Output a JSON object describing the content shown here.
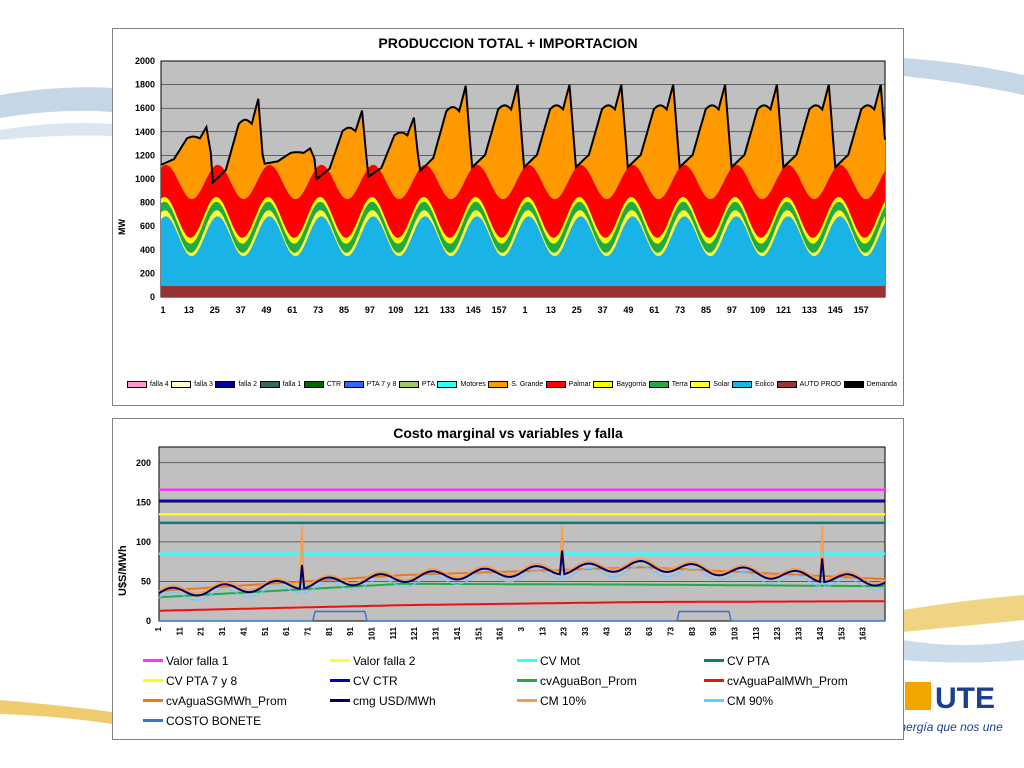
{
  "branding": {
    "tagline": "La energía que nos une",
    "logo_text": "UTE"
  },
  "chart_data": [
    {
      "type": "area",
      "title": "PRODUCCION TOTAL + IMPORTACION",
      "ylabel": "MW",
      "ylim": [
        0,
        2000
      ],
      "yticks": [
        0,
        200,
        400,
        600,
        800,
        1000,
        1200,
        1400,
        1600,
        1800,
        2000
      ],
      "xticks": [
        "1",
        "13",
        "25",
        "37",
        "49",
        "61",
        "73",
        "85",
        "97",
        "109",
        "121",
        "133",
        "145",
        "157",
        "1",
        "13",
        "25",
        "37",
        "49",
        "61",
        "73",
        "85",
        "97",
        "109",
        "121",
        "133",
        "145",
        "157"
      ],
      "x_count": 336,
      "grid": true,
      "legend_position": "bottom",
      "layers": [
        {
          "name": "AUTO PROD",
          "color": "#993333",
          "base": 95,
          "amp": 0,
          "min": 95,
          "max": 95
        },
        {
          "name": "Eolico",
          "color": "#1ab3e8",
          "base": 420,
          "amp": 170,
          "min": 200,
          "max": 650
        },
        {
          "name": "Solar",
          "color": "#ffff33",
          "base": 40,
          "amp": 20,
          "min": 20,
          "max": 60
        },
        {
          "name": "Terra",
          "color": "#22aa44",
          "base": 75,
          "amp": 10,
          "min": 60,
          "max": 90
        },
        {
          "name": "Baygorria",
          "color": "#ffff00",
          "base": 45,
          "amp": 5,
          "min": 40,
          "max": 50
        },
        {
          "name": "Palmar",
          "color": "#ff0000",
          "base": 300,
          "amp": 40,
          "min": 250,
          "max": 350
        },
        {
          "name": "S. Grande",
          "color": "#ff9900",
          "base": 500,
          "amp": 300,
          "min": 150,
          "max": 850
        }
      ],
      "series": [
        {
          "name": "falla 4",
          "color": "#ff99cc",
          "values": []
        },
        {
          "name": "falla 3",
          "color": "#ffffcc",
          "values": []
        },
        {
          "name": "falla 2",
          "color": "#000099",
          "values": []
        },
        {
          "name": "falla 1",
          "color": "#336666",
          "values": []
        },
        {
          "name": "CTR",
          "color": "#006600",
          "values": []
        },
        {
          "name": "PTA 7 y 8",
          "color": "#3366ff",
          "values": []
        },
        {
          "name": "PTA",
          "color": "#99cc66",
          "values": []
        },
        {
          "name": "Motores",
          "color": "#33ffff",
          "values": []
        },
        {
          "name": "S. Grande",
          "color": "#ff9900",
          "values": []
        },
        {
          "name": "Palmar",
          "color": "#ff0000",
          "values": []
        },
        {
          "name": "Baygorria",
          "color": "#ffff00",
          "values": []
        },
        {
          "name": "Terra",
          "color": "#22aa44",
          "values": []
        },
        {
          "name": "Solar",
          "color": "#ffff33",
          "values": []
        },
        {
          "name": "Eolico",
          "color": "#1ab3e8",
          "values": []
        },
        {
          "name": "AUTO PROD",
          "color": "#993333",
          "values": []
        },
        {
          "name": "Demanda",
          "color": "#000000",
          "values": []
        }
      ],
      "demanda_daily_peaks": [
        1440,
        1680,
        1260,
        1580,
        1520,
        1790,
        1800,
        1800,
        1800,
        1800,
        1800,
        1800,
        1800,
        1800
      ],
      "demanda_daily_troughs": [
        1120,
        970,
        1130,
        1000,
        1020,
        1070,
        1100,
        1100,
        1100,
        1100,
        1100,
        1100,
        1100,
        1100
      ]
    },
    {
      "type": "line",
      "title": "Costo marginal  vs variables y falla",
      "ylabel": "U$S/MWh",
      "ylim": [
        0,
        220
      ],
      "yticks": [
        0,
        50,
        100,
        150,
        200
      ],
      "xticks": [
        "1",
        "11",
        "21",
        "31",
        "41",
        "51",
        "61",
        "71",
        "81",
        "91",
        "101",
        "111",
        "121",
        "131",
        "141",
        "151",
        "161",
        "3",
        "13",
        "23",
        "33",
        "43",
        "53",
        "63",
        "73",
        "83",
        "93",
        "103",
        "113",
        "123",
        "133",
        "143",
        "153",
        "163"
      ],
      "grid": true,
      "legend_position": "bottom",
      "series": [
        {
          "name": "Valor falla 1",
          "color": "#ff33ff",
          "values": [
            166
          ]
        },
        {
          "name": "Valor falla 2",
          "color": "#ffff33",
          "values": [
            135
          ]
        },
        {
          "name": "CV Mot",
          "color": "#33ffff",
          "values": [
            85
          ]
        },
        {
          "name": "CV PTA",
          "color": "#117777",
          "values": [
            124
          ]
        },
        {
          "name": "CV PTA 7 y 8",
          "color": "#ffff00",
          "values": [
            135
          ]
        },
        {
          "name": "CV CTR",
          "color": "#0000cc",
          "values": [
            152
          ]
        },
        {
          "name": "cvAguaBon_Prom",
          "color": "#22aa44",
          "values": [
            30,
            47,
            46,
            44
          ]
        },
        {
          "name": "cvAguaPalMWh_Prom",
          "color": "#ee1111",
          "values": [
            13,
            20,
            24,
            25
          ]
        },
        {
          "name": "cvAguaSGMWh_Prom",
          "color": "#ee7722",
          "values": [
            40,
            60,
            70,
            55
          ]
        },
        {
          "name": "cmg USD/MWh",
          "color": "#000066",
          "values": [
            35,
            55,
            70,
            50
          ]
        },
        {
          "name": "CM 10%",
          "color": "#ff9944",
          "values": [
            120
          ]
        },
        {
          "name": "CM 90%",
          "color": "#66ccff",
          "values": [
            30
          ]
        },
        {
          "name": "COSTO BONETE",
          "color": "#3377cc",
          "values": [
            12
          ]
        }
      ]
    }
  ]
}
